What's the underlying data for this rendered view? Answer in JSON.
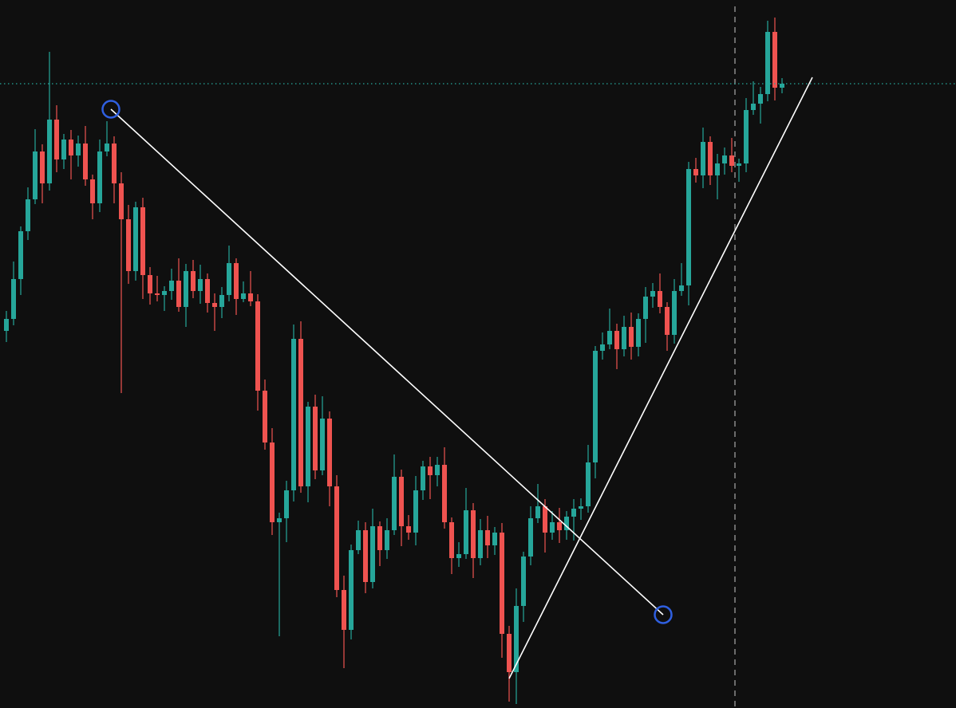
{
  "chart_data": {
    "type": "candlestick",
    "ylim": [
      0,
      888
    ],
    "up_color": "#26a69a",
    "down_color": "#ef5350",
    "price_line_color": "#26a69a",
    "series": [
      {
        "open": [
          473,
          488,
          538,
          598,
          638,
          698,
          658,
          738,
          688,
          713,
          693,
          708,
          663,
          633,
          698,
          708,
          658,
          613,
          548,
          628,
          543,
          520,
          518,
          523,
          536,
          503,
          548,
          523,
          538,
          508,
          503,
          518,
          558,
          513,
          520,
          510,
          398,
          333,
          233,
          238,
          273,
          463,
          278,
          378,
          298,
          363,
          278,
          148,
          98,
          198,
          223,
          158,
          228,
          198,
          223,
          290,
          228,
          220,
          273,
          303,
          292,
          305,
          233,
          188,
          193,
          248,
          188,
          223,
          204,
          220,
          93,
          45,
          128,
          190,
          238,
          253,
          220,
          233,
          223,
          240,
          250,
          253,
          308,
          448,
          456,
          473,
          450,
          478,
          453,
          488,
          516,
          523,
          503,
          468,
          523,
          530,
          676,
          668,
          710,
          668,
          683,
          693,
          680,
          683,
          750,
          758,
          770,
          848,
          778
        ],
        "high": [
          498,
          560,
          604,
          653,
          726,
          707,
          823,
          756,
          720,
          725,
          718,
          730,
          669,
          713,
          736,
          717,
          672,
          631,
          635,
          640,
          553,
          542,
          529,
          551,
          564,
          557,
          562,
          556,
          545,
          520,
          528,
          580,
          564,
          535,
          548,
          519,
          412,
          351,
          245,
          285,
          481,
          485,
          384,
          393,
          391,
          372,
          292,
          166,
          205,
          235,
          233,
          250,
          234,
          238,
          318,
          299,
          242,
          291,
          310,
          315,
          315,
          327,
          239,
          208,
          276,
          257,
          237,
          241,
          227,
          232,
          103,
          150,
          196,
          253,
          281,
          262,
          247,
          251,
          247,
          262,
          263,
          330,
          454,
          471,
          501,
          482,
          492,
          496,
          495,
          528,
          533,
          545,
          509,
          538,
          558,
          685,
          690,
          728,
          717,
          695,
          703,
          715,
          689,
          765,
          786,
          779,
          862,
          866,
          790
        ],
        "low": [
          459,
          480,
          518,
          587,
          632,
          633,
          649,
          672,
          676,
          663,
          679,
          655,
          613,
          622,
          692,
          633,
          395,
          532,
          536,
          513,
          506,
          510,
          498,
          512,
          497,
          478,
          514,
          507,
          496,
          473,
          489,
          510,
          493,
          509,
          504,
          373,
          324,
          217,
          90,
          208,
          259,
          270,
          258,
          287,
          292,
          253,
          139,
          50,
          86,
          193,
          144,
          150,
          178,
          187,
          217,
          203,
          211,
          204,
          261,
          262,
          278,
          225,
          168,
          177,
          187,
          163,
          179,
          188,
          192,
          63,
          8,
          5,
          108,
          179,
          232,
          195,
          211,
          207,
          211,
          210,
          236,
          245,
          288,
          437,
          450,
          425,
          441,
          437,
          441,
          458,
          502,
          495,
          448,
          457,
          517,
          505,
          659,
          652,
          656,
          638,
          669,
          672,
          660,
          672,
          744,
          733,
          761,
          762,
          771
        ],
        "close": [
          488,
          538,
          598,
          638,
          698,
          658,
          738,
          688,
          713,
          693,
          708,
          663,
          633,
          698,
          708,
          658,
          613,
          548,
          628,
          543,
          520,
          518,
          523,
          536,
          503,
          548,
          523,
          538,
          508,
          503,
          518,
          558,
          513,
          520,
          510,
          398,
          333,
          233,
          238,
          273,
          463,
          278,
          378,
          298,
          363,
          278,
          148,
          98,
          198,
          223,
          158,
          228,
          198,
          223,
          290,
          228,
          220,
          273,
          303,
          292,
          305,
          233,
          188,
          193,
          248,
          188,
          223,
          204,
          220,
          93,
          45,
          128,
          190,
          238,
          253,
          220,
          233,
          223,
          240,
          250,
          253,
          308,
          448,
          456,
          473,
          450,
          478,
          453,
          488,
          516,
          523,
          503,
          468,
          523,
          530,
          676,
          668,
          710,
          668,
          683,
          693,
          680,
          683,
          750,
          758,
          770,
          848,
          778,
          783
        ]
      }
    ]
  }
}
